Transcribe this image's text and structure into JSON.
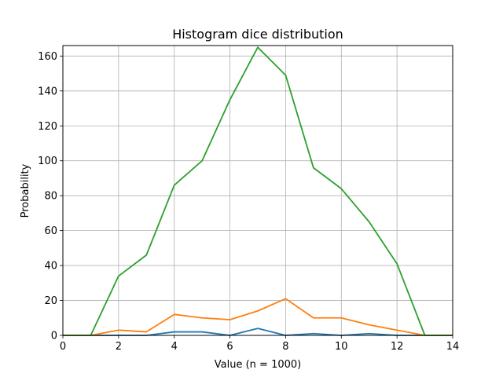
{
  "chart_data": {
    "type": "line",
    "title": "Histogram dice distribution",
    "xlabel": "Value (n = 1000)",
    "ylabel": "Probability",
    "xlim": [
      0,
      14
    ],
    "ylim": [
      0,
      166
    ],
    "grid": true,
    "xticks": [
      0,
      2,
      4,
      6,
      8,
      10,
      12,
      14
    ],
    "yticks": [
      0,
      20,
      40,
      60,
      80,
      100,
      120,
      140,
      160
    ],
    "x": [
      0,
      1,
      2,
      3,
      4,
      5,
      6,
      7,
      8,
      9,
      10,
      11,
      12,
      13,
      14
    ],
    "series": [
      {
        "color": "#1f77b4",
        "values": [
          0,
          0,
          0,
          0,
          2,
          2,
          0,
          4,
          0,
          1,
          0,
          1,
          0,
          0,
          0
        ]
      },
      {
        "color": "#ff7f0e",
        "values": [
          0,
          0,
          3,
          2,
          12,
          10,
          9,
          14,
          21,
          10,
          10,
          6,
          3,
          0,
          0
        ]
      },
      {
        "color": "#2ca02c",
        "values": [
          0,
          0,
          34,
          46,
          86,
          100,
          135,
          165,
          149,
          96,
          84,
          65,
          41,
          0,
          0
        ]
      }
    ]
  }
}
